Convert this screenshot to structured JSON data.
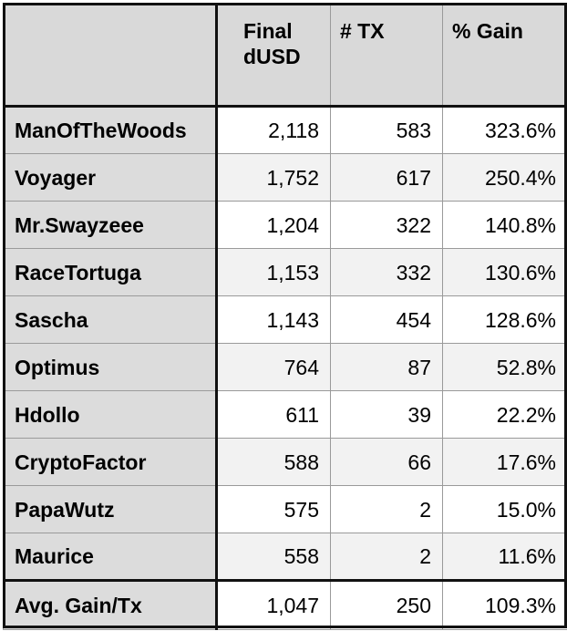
{
  "headers": {
    "name": "",
    "final_line1": "Final",
    "final_line2": "dUSD",
    "tx": "# TX",
    "gain": "% Gain"
  },
  "rows": [
    {
      "name": "ManOfTheWoods",
      "final": "2,118",
      "tx": "583",
      "gain": "323.6%"
    },
    {
      "name": "Voyager",
      "final": "1,752",
      "tx": "617",
      "gain": "250.4%"
    },
    {
      "name": "Mr.Swayzeee",
      "final": "1,204",
      "tx": "322",
      "gain": "140.8%"
    },
    {
      "name": "RaceTortuga",
      "final": "1,153",
      "tx": "332",
      "gain": "130.6%"
    },
    {
      "name": "Sascha",
      "final": "1,143",
      "tx": "454",
      "gain": "128.6%"
    },
    {
      "name": "Optimus",
      "final": "764",
      "tx": "87",
      "gain": "52.8%"
    },
    {
      "name": "Hdollo",
      "final": "611",
      "tx": "39",
      "gain": "22.2%"
    },
    {
      "name": "CryptoFactor",
      "final": "588",
      "tx": "66",
      "gain": "17.6%"
    },
    {
      "name": "PapaWutz",
      "final": "575",
      "tx": "2",
      "gain": "15.0%"
    },
    {
      "name": "Maurice",
      "final": "558",
      "tx": "2",
      "gain": "11.6%"
    }
  ],
  "footer": {
    "name": "Avg. Gain/Tx",
    "final": "1,047",
    "tx": "250",
    "gain": "109.3%"
  },
  "colors": {
    "header_bg": "#d9d9d9",
    "name_col_bg": "#dcdcdc",
    "alt_row_bg": "#f2f2f2",
    "border_dark": "#111111"
  }
}
